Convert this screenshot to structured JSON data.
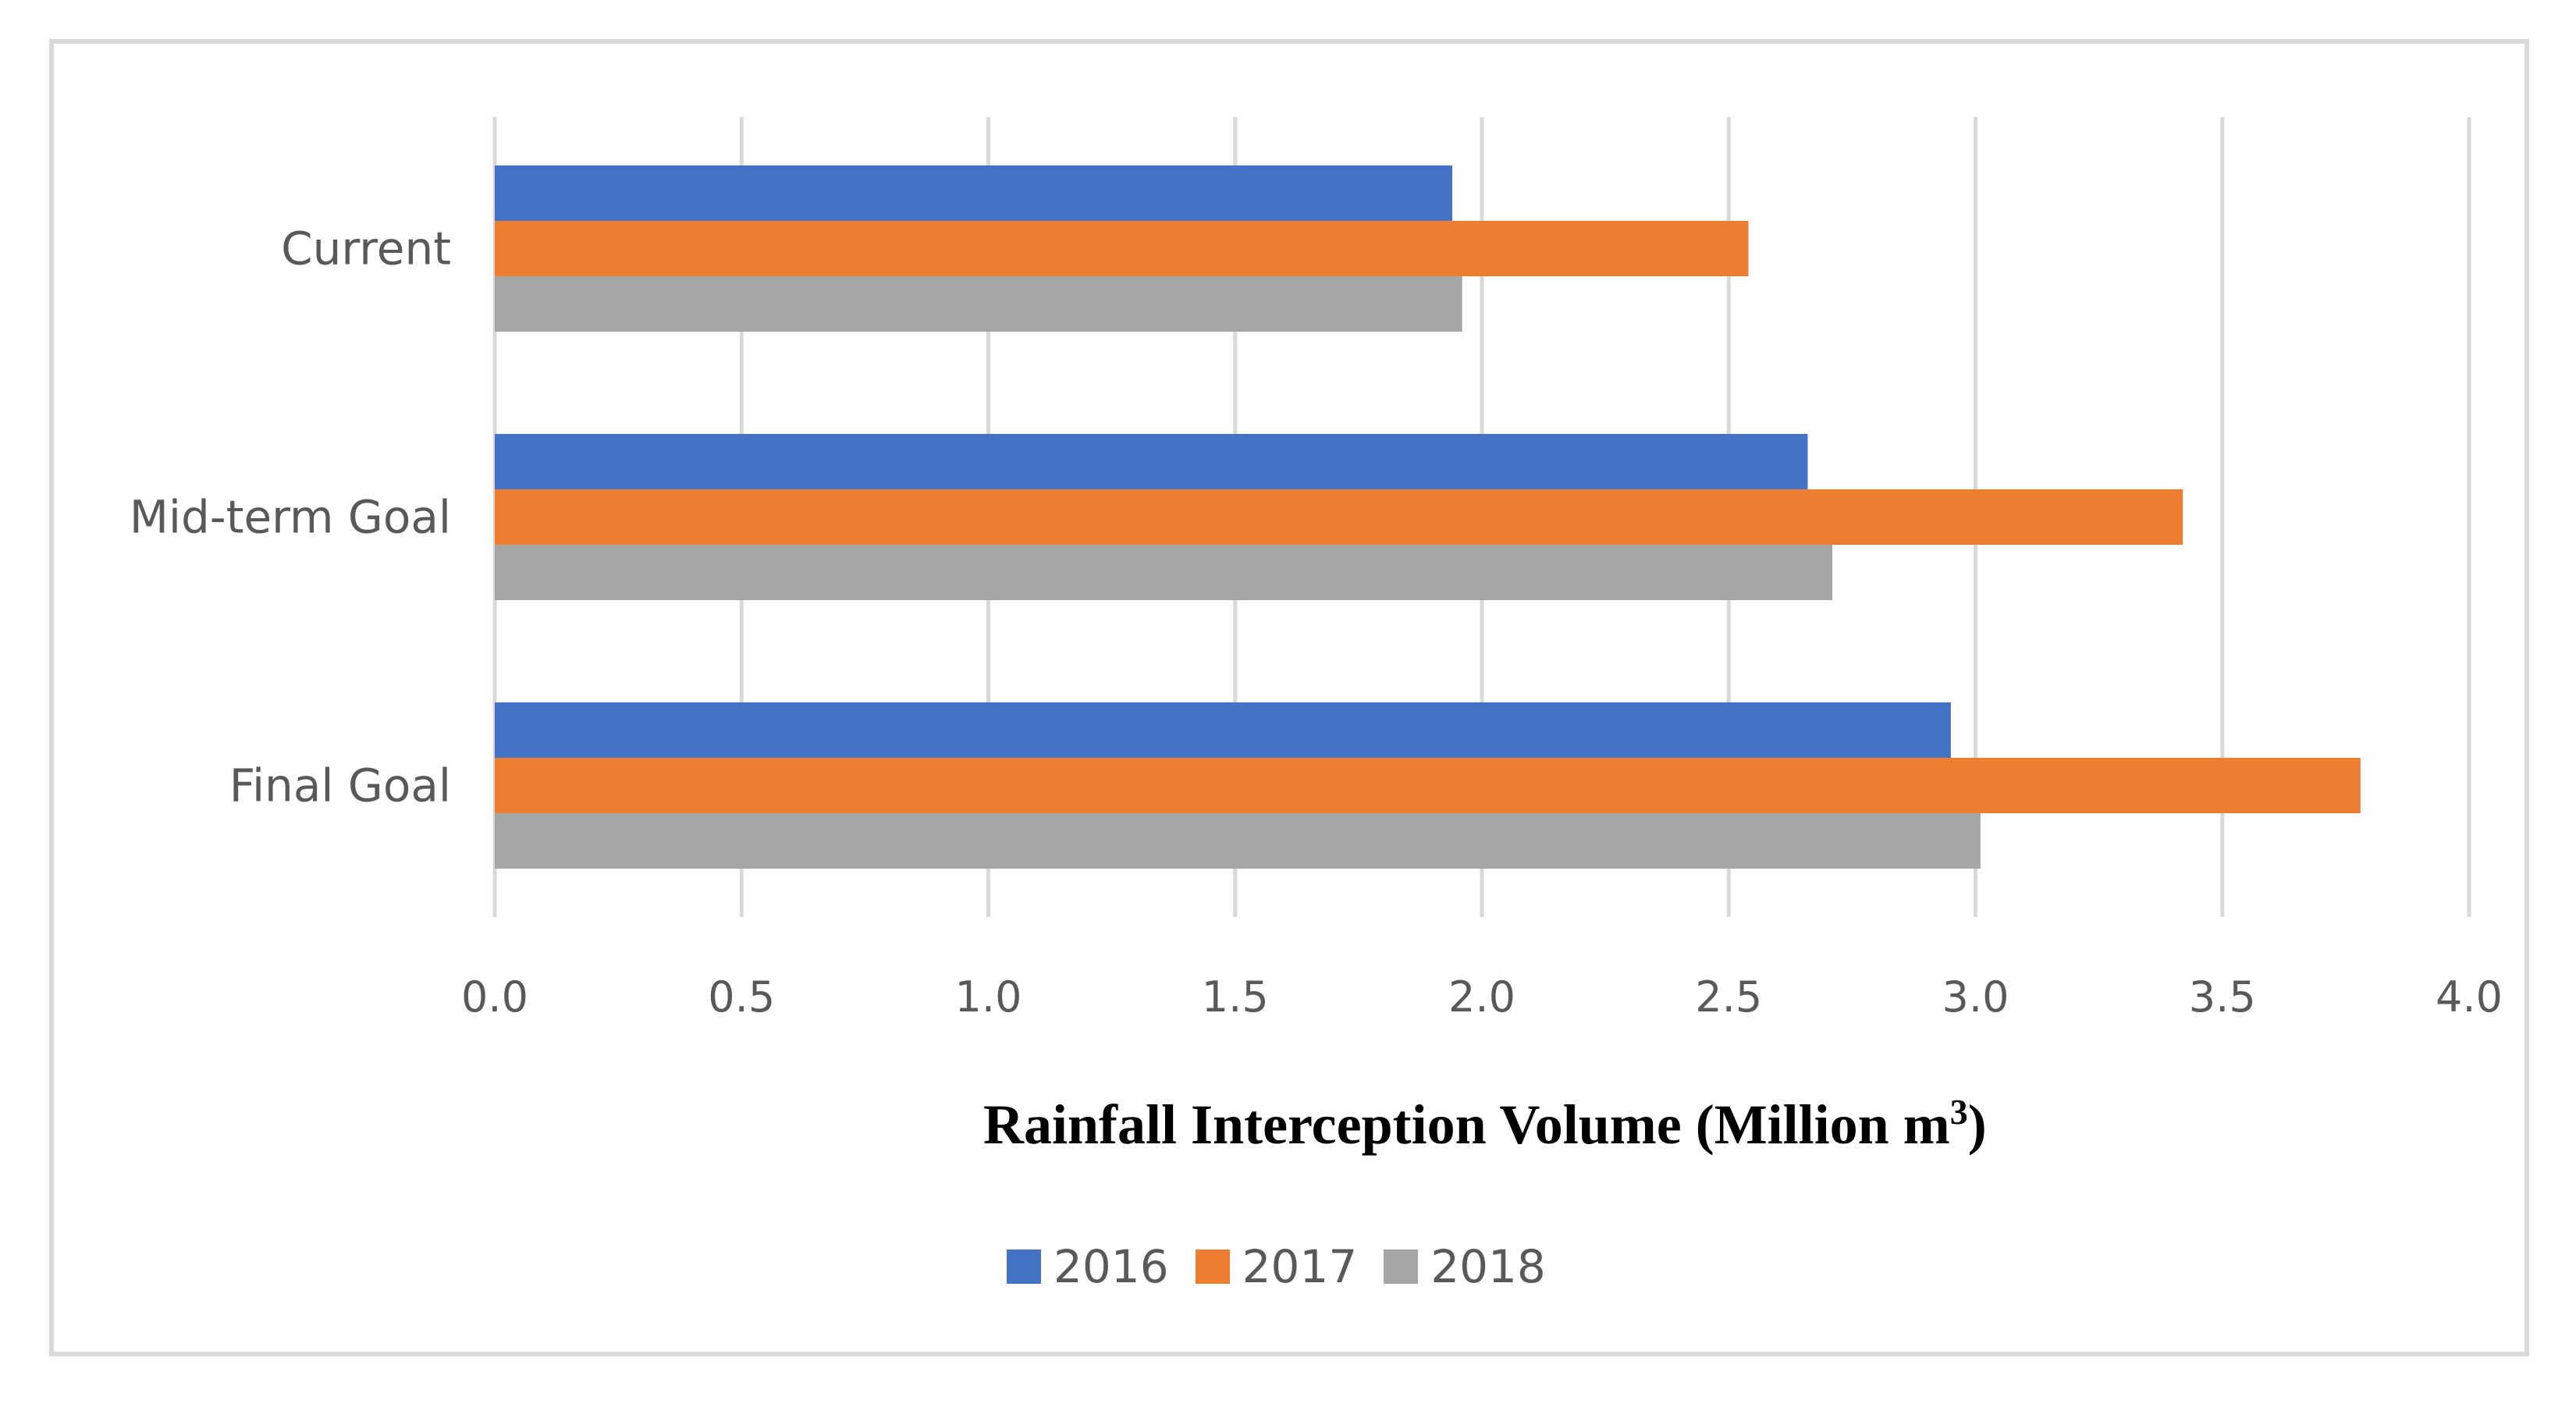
{
  "chart_data": {
    "type": "bar",
    "orientation": "horizontal",
    "categories": [
      "Current",
      "Mid-term Goal",
      "Final Goal"
    ],
    "series": [
      {
        "name": "2016",
        "color": "#4472c4",
        "values": [
          1.94,
          2.66,
          2.95
        ]
      },
      {
        "name": "2017",
        "color": "#ed7d31",
        "values": [
          2.54,
          3.42,
          3.78
        ]
      },
      {
        "name": "2018",
        "color": "#a5a5a5",
        "values": [
          1.96,
          2.71,
          3.01
        ]
      }
    ],
    "xlim": [
      0.0,
      4.0
    ],
    "xticks": [
      "0.0",
      "0.5",
      "1.0",
      "1.5",
      "2.0",
      "2.5",
      "3.0",
      "3.5",
      "4.0"
    ],
    "xlabel_main": "Rainfall Interception Volume (Million m",
    "xlabel_sup": "3",
    "xlabel_end": ")",
    "legend_position": "bottom-center",
    "grid": true,
    "grid_color": "#d9d9d9"
  }
}
